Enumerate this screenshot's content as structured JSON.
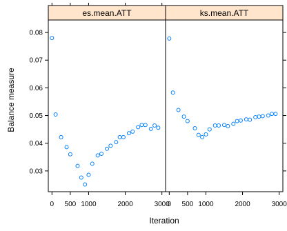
{
  "chart_data": [
    {
      "type": "scatter",
      "panel": "es.mean.ATT",
      "xlabel": "Iteration",
      "ylabel": "Balance measure",
      "xlim": [
        -100,
        3100
      ],
      "ylim": [
        0.0225,
        0.0845
      ],
      "x_ticks": [
        0,
        500,
        1000,
        2000,
        3000
      ],
      "y_ticks": [
        0.03,
        0.04,
        0.05,
        0.06,
        0.07,
        0.08
      ],
      "marker_color": "#0080ff",
      "points": {
        "x": [
          0,
          100,
          250,
          400,
          500,
          700,
          800,
          900,
          1000,
          1100,
          1250,
          1350,
          1500,
          1600,
          1750,
          1850,
          1950,
          2100,
          2200,
          2350,
          2450,
          2550,
          2700,
          2800,
          2900
        ],
        "y": [
          0.078,
          0.0504,
          0.0422,
          0.0386,
          0.036,
          0.0318,
          0.0276,
          0.0251,
          0.0286,
          0.0326,
          0.0356,
          0.0362,
          0.038,
          0.0391,
          0.0404,
          0.0422,
          0.0422,
          0.0436,
          0.0442,
          0.0458,
          0.0466,
          0.0466,
          0.0452,
          0.0464,
          0.0456
        ]
      }
    },
    {
      "type": "scatter",
      "panel": "ks.mean.ATT",
      "xlabel": "Iteration",
      "ylabel": "Balance measure",
      "xlim": [
        -100,
        3100
      ],
      "ylim": [
        0.0225,
        0.0845
      ],
      "x_ticks": [
        0,
        500,
        1000,
        2000,
        3000
      ],
      "y_ticks": [
        0.03,
        0.04,
        0.05,
        0.06,
        0.07,
        0.08
      ],
      "marker_color": "#0080ff",
      "points": {
        "x": [
          0,
          100,
          250,
          400,
          500,
          700,
          800,
          900,
          1000,
          1100,
          1250,
          1350,
          1500,
          1600,
          1750,
          1850,
          1950,
          2100,
          2200,
          2350,
          2450,
          2550,
          2700,
          2800,
          2900
        ],
        "y": [
          0.0778,
          0.0583,
          0.052,
          0.0496,
          0.048,
          0.0454,
          0.043,
          0.0422,
          0.0432,
          0.045,
          0.0464,
          0.0464,
          0.0466,
          0.0462,
          0.047,
          0.048,
          0.0482,
          0.0486,
          0.0485,
          0.0494,
          0.0496,
          0.0498,
          0.05,
          0.0506,
          0.0506
        ]
      }
    }
  ]
}
